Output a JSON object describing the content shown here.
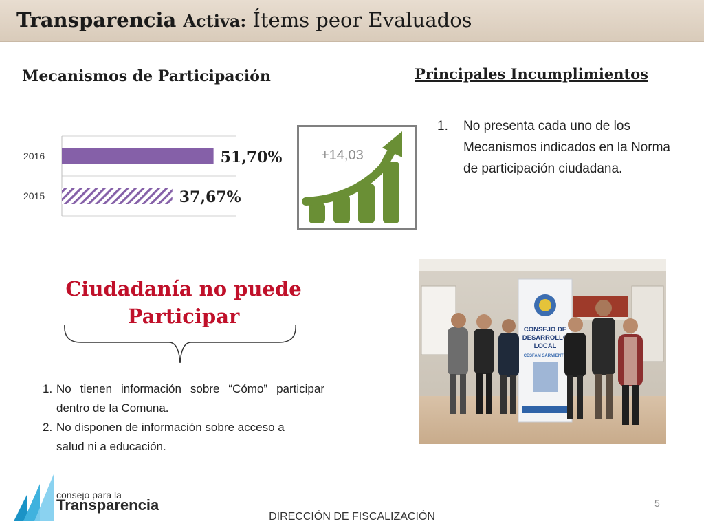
{
  "header": {
    "title_bold1": "Transparencia ",
    "title_bold2": "Activa:",
    "title_rest": " Ítems peor Evaluados"
  },
  "left": {
    "section_title": "Mecanismos de Participación"
  },
  "chart_data": {
    "type": "bar",
    "orientation": "horizontal",
    "categories": [
      "2016",
      "2015"
    ],
    "values": [
      51.7,
      37.67
    ],
    "value_labels": [
      "51,70%",
      "37,67%"
    ],
    "xlim": [
      0,
      100
    ],
    "colors": [
      "#8560a8",
      "#8560a8"
    ],
    "patterns": [
      "solid",
      "hatched"
    ],
    "title": "",
    "xlabel": "",
    "ylabel": "",
    "grid": true,
    "legend": "none"
  },
  "growth": {
    "label": "+14,03",
    "icon": "growth-chart-icon",
    "color": "#6a8f35"
  },
  "right": {
    "section_title": "Principales Incumplimientos",
    "items": [
      {
        "num": "1.",
        "text": "No presenta cada uno de los Mecanismos indicados en la Norma de participación ciudadana."
      }
    ]
  },
  "citizenship": {
    "title": "Ciudadanía no puede Participar",
    "title_color": "#c0102a",
    "items": [
      {
        "num": "1.",
        "text": "No tienen información sobre “Cómo” participar dentro de la Comuna."
      },
      {
        "num": "2.",
        "text": "No disponen de información sobre acceso a salud ni a educación."
      }
    ]
  },
  "photo": {
    "banner_line1": "CONSEJO DE",
    "banner_line2": "DESARROLLO",
    "banner_line3": "LOCAL",
    "banner_line4": "CESFAM SARMIENTO"
  },
  "logo": {
    "small": "consejo para la",
    "big": "Transparencia"
  },
  "page_number": "5",
  "footer": "DIRECCIÓN DE FISCALIZACIÓN"
}
